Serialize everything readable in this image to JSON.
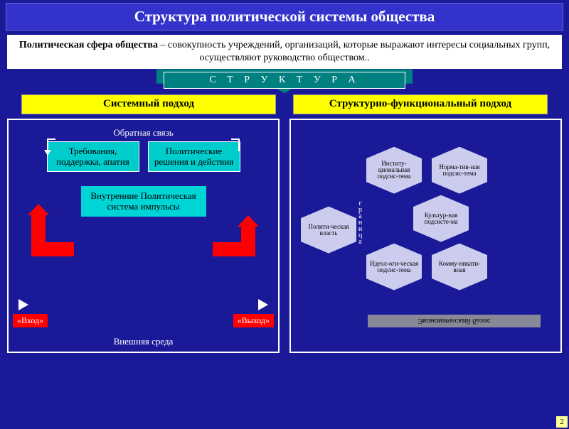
{
  "title": "Структура политической системы общества",
  "definition_term": "Политическая сфера общества",
  "definition_text": " – совокупность учреждений, организаций, которые выражают интересы социальных групп, осуществляют руководство обществом..",
  "struct_label": "С Т Р У К Т У Р А",
  "approach_left": "Системный подход",
  "approach_right": "Структурно-функциональный подход",
  "feedback": "Обратная связь",
  "box_demands": "Требования, поддержка, апатия",
  "box_decisions": "Политические решения и действия",
  "box_internal": "Внутренние Политическая система импульсы",
  "io_in": "«Вход»",
  "io_out": "«Выход»",
  "environment": "Внешняя среда",
  "border_label": "граница",
  "hex_power": "Полити-ческая власть",
  "hex_inst": "Институ-циональная подсис-тема",
  "hex_norm": "Норма-тив-ная подсис-тема",
  "hex_cult": "Культур-ная подсисте-ма",
  "hex_ideo": "Идеол-оги-ческая подсис-тема",
  "hex_comm": "Комму-никати-вная",
  "econ": "Экономический базис",
  "page": "2",
  "colors": {
    "bg": "#1a1a99",
    "title_bg": "#3333cc",
    "yellow": "#ffff00",
    "teal": "#008080",
    "cyan": "#00cccc",
    "red": "#ff0000",
    "hex": "#ccccee"
  }
}
